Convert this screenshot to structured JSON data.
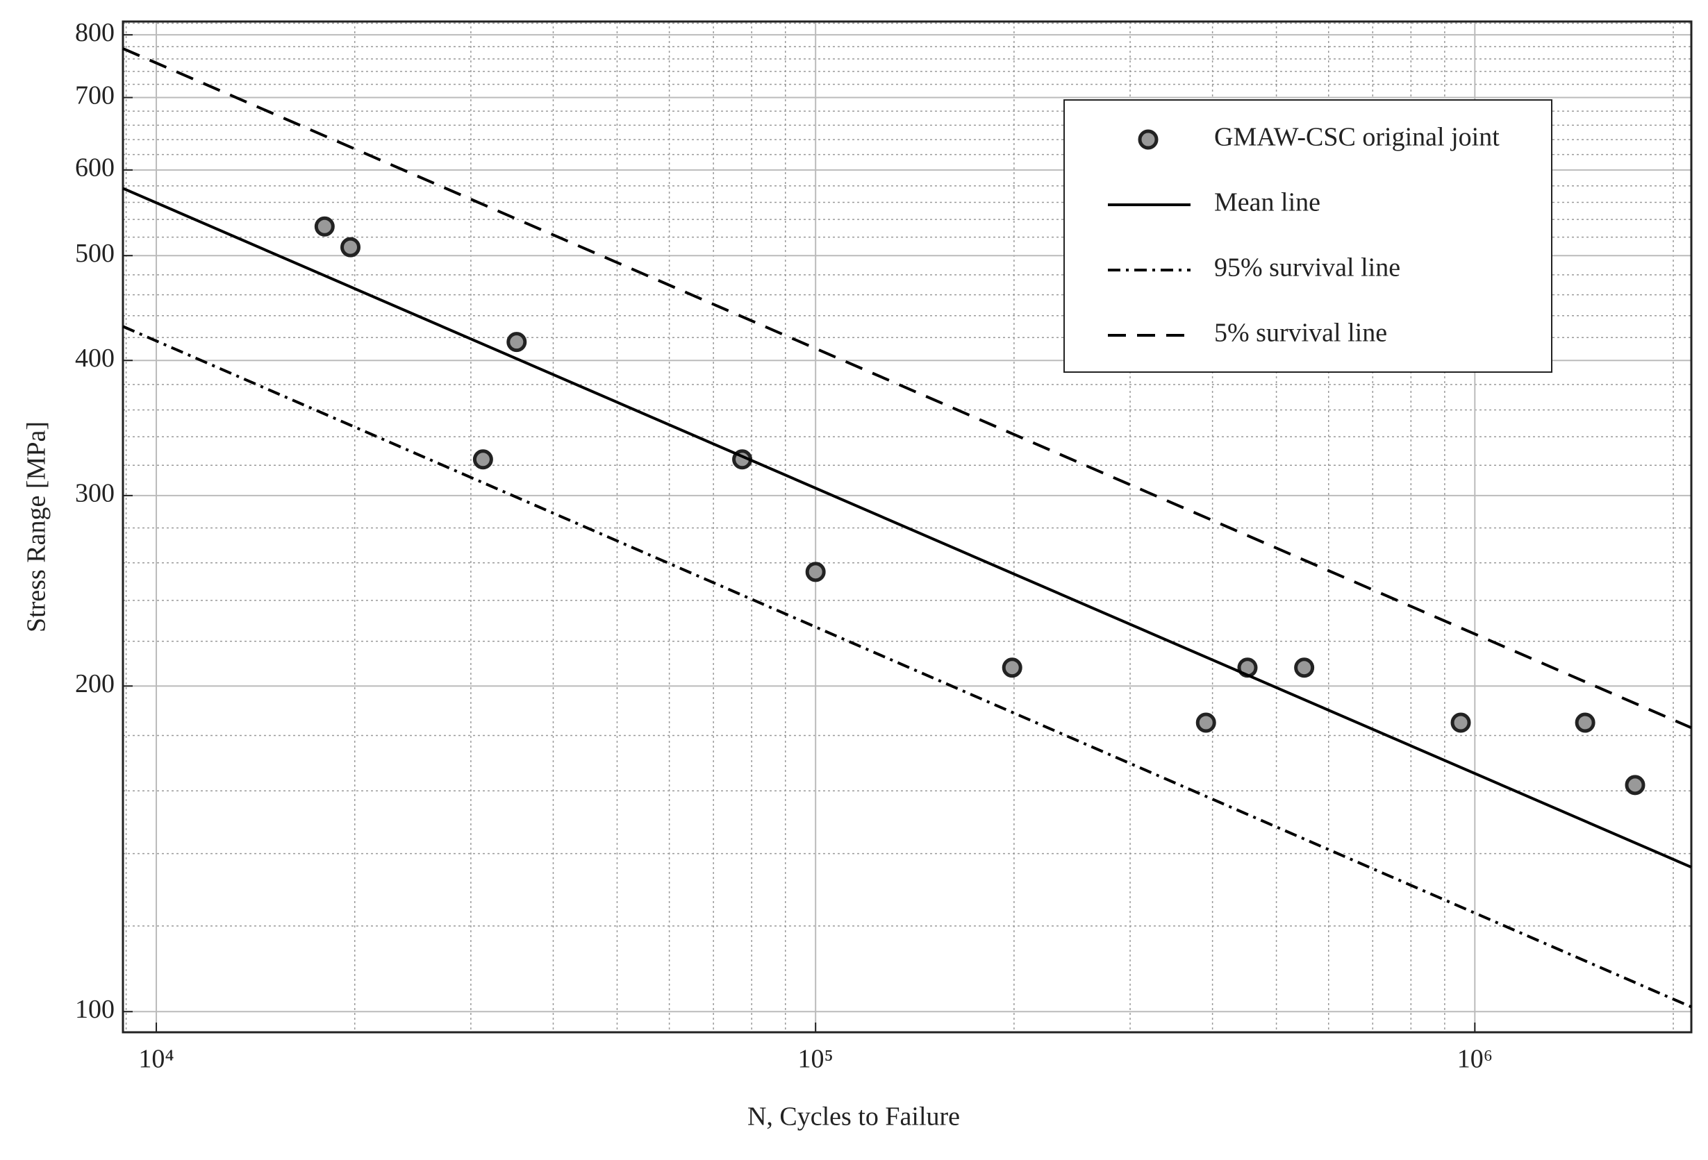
{
  "chart_data": {
    "type": "scatter",
    "xlabel": "N, Cycles to Failure",
    "ylabel": "Stress Range [MPa]",
    "xscale": "log",
    "yscale": "log",
    "grid": true,
    "minor_grid": true,
    "legend": "upper right",
    "xlim": [
      8900,
      2130000
    ],
    "xticks": [
      {
        "value": 10000,
        "label": "10⁴"
      },
      {
        "value": 100000,
        "label": "10⁵"
      },
      {
        "value": 1000000,
        "label": "10⁶"
      }
    ],
    "ylim": [
      95.7,
      823
    ],
    "yticks": [
      100,
      200,
      300,
      400,
      500,
      600,
      700,
      800
    ],
    "series": [
      {
        "name": "GMAW-CSC original joint",
        "color": "#999999",
        "marker": "circle",
        "x": [
          18000,
          19700,
          31300,
          35200,
          77400,
          100000,
          198700,
          391000,
          452000,
          551000,
          952000,
          1470000,
          1750000
        ],
        "values": [
          532,
          509,
          324,
          416,
          324,
          255,
          208,
          185,
          208,
          208,
          185,
          185,
          162
        ]
      },
      {
        "name": "Mean line",
        "color": "#000000",
        "line": "solid",
        "x": [
          8900,
          2130000
        ],
        "values": [
          577,
          136
        ]
      },
      {
        "name": "95% survival line",
        "color": "#000000",
        "line": "dashdot",
        "x": [
          8900,
          2130000
        ],
        "values": [
          430,
          101
        ]
      },
      {
        "name": "5% survival line",
        "color": "#000000",
        "line": "dashed",
        "x": [
          8900,
          2130000
        ],
        "values": [
          777,
          183
        ]
      }
    ]
  }
}
